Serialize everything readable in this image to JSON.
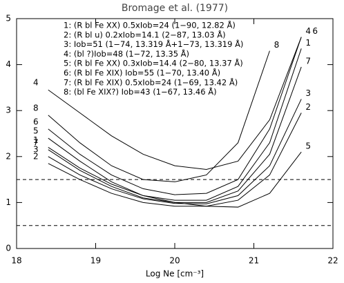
{
  "chart_data": {
    "type": "line",
    "title": "Bromage et al. (1977)",
    "x_label": "Log Ne [cm⁻³]",
    "x": [
      18.4,
      18.8,
      19.2,
      19.6,
      20.0,
      20.4,
      20.8,
      21.2,
      21.6
    ],
    "series": [
      {
        "name": "1: (R bl Fe XX) 0.5xIob=24 (1−90, 12.82 Å)",
        "label": "1",
        "color": "#000000",
        "values": [
          2.2,
          1.75,
          1.4,
          1.15,
          1.05,
          1.05,
          1.35,
          2.3,
          4.35
        ]
      },
      {
        "name": "2: (R bl u) 0.2xIob=14.1 (2−87, 13.03 Å)",
        "label": "2",
        "color": "#000000",
        "values": [
          1.85,
          1.5,
          1.2,
          1.0,
          0.92,
          0.92,
          1.05,
          1.6,
          2.95
        ]
      },
      {
        "name": "3: Iob=51 (1−74, 13.319 Å+1−73, 13.319 Å)",
        "label": "3",
        "color": "#000000",
        "values": [
          2.0,
          1.6,
          1.3,
          1.08,
          0.98,
          0.97,
          1.15,
          1.8,
          3.25
        ]
      },
      {
        "name": "4: (bl ?)Iob=48 (1−72, 13.35 Å)",
        "label": "4",
        "color": "#000000",
        "values": [
          3.45,
          2.95,
          2.45,
          2.05,
          1.8,
          1.72,
          1.9,
          2.8,
          4.6
        ]
      },
      {
        "name": "5: (R bl Fe XX) 0.3xIob=14.4 (2−80, 13.37 Å)",
        "label": "5",
        "color": "#000000",
        "values": [
          2.4,
          1.9,
          1.45,
          1.15,
          1.0,
          0.92,
          0.9,
          1.2,
          2.1
        ]
      },
      {
        "name": "6: (R bl Fe XIX) Iob=55 (1−70, 13.40 Å)",
        "label": "6",
        "color": "#000000",
        "values": [
          2.6,
          2.05,
          1.6,
          1.3,
          1.17,
          1.2,
          1.5,
          2.6,
          4.6
        ]
      },
      {
        "name": "7: (R bl Fe XIX) 0.5xIob=24 (1−69, 13.42 Å)",
        "label": "7",
        "color": "#000000",
        "values": [
          2.15,
          1.7,
          1.35,
          1.1,
          1.0,
          1.0,
          1.25,
          2.05,
          3.95
        ]
      },
      {
        "name": "8: (bl Fe XIX?) Iob=43 (1−67, 13.46 Å)",
        "label": "8",
        "color": "#000000",
        "values": [
          2.9,
          2.3,
          1.8,
          1.5,
          1.45,
          1.6,
          2.3,
          4.3,
          null
        ]
      }
    ],
    "hlines": [
      1.5,
      0.5
    ],
    "xlim": [
      18,
      22
    ],
    "xticks": [
      18,
      19,
      20,
      21,
      22
    ],
    "ylim": [
      0,
      5
    ],
    "yticks": [
      0,
      1,
      2,
      3,
      4,
      5
    ]
  }
}
